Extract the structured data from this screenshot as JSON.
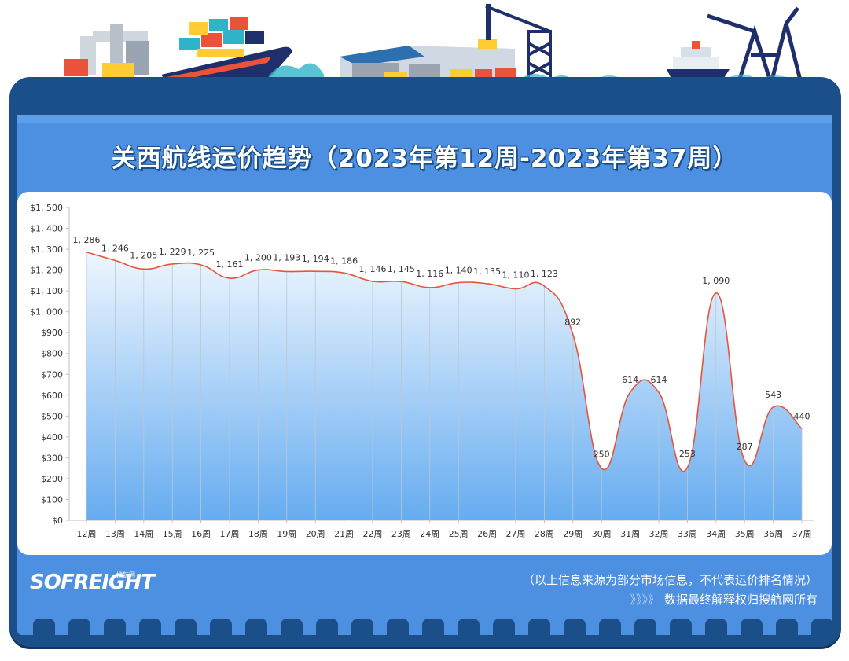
{
  "header": {
    "title": "关西航线运价趋势（2023年第12周-2023年第37周）"
  },
  "footer": {
    "logo": "SOFREIGHT",
    "logo_sub": "搜航网",
    "note1": "（以上信息来源为部分市场信息，不代表运价排名情况）",
    "note2_arrows": "》》》》",
    "note2": "数据最终解释权归搜航网所有"
  },
  "colors": {
    "panel": "#1b4f8a",
    "inner": "#4d8fe0",
    "line": "#e8533a",
    "area_top": "#e9f3fd",
    "area_bottom": "#6fb2f2"
  },
  "chart_data": {
    "type": "area",
    "title": "关西航线运价趋势（2023年第12周-2023年第37周）",
    "categories": [
      "12周",
      "13周",
      "14周",
      "15周",
      "16周",
      "17周",
      "18周",
      "19周",
      "20周",
      "21周",
      "22周",
      "23周",
      "24周",
      "25周",
      "26周",
      "27周",
      "28周",
      "29周",
      "30周",
      "31周",
      "32周",
      "33周",
      "34周",
      "35周",
      "36周",
      "37周"
    ],
    "values": [
      1286,
      1246,
      1205,
      1229,
      1225,
      1161,
      1200,
      1193,
      1194,
      1186,
      1146,
      1145,
      1116,
      1140,
      1135,
      1110,
      1123,
      892,
      250,
      614,
      614,
      253,
      1090,
      287,
      543,
      440
    ],
    "value_labels": [
      "1, 286",
      "1, 246",
      "1, 205",
      "1, 229",
      "1, 225",
      "1, 161",
      "1, 200",
      "1, 193",
      "1, 194",
      "1, 186",
      "1, 146",
      "1, 145",
      "1, 116",
      "1, 140",
      "1, 135",
      "1, 110",
      "1, 123",
      "892",
      "250",
      "614",
      "614",
      "253",
      "1, 090",
      "287",
      "543",
      "440"
    ],
    "yticks": [
      0,
      100,
      200,
      300,
      400,
      500,
      600,
      700,
      800,
      900,
      1000,
      1100,
      1200,
      1300,
      1400,
      1500
    ],
    "ytick_labels": [
      "$0",
      "$100",
      "$200",
      "$300",
      "$400",
      "$500",
      "$600",
      "$700",
      "$800",
      "$900",
      "$1, 000",
      "$1, 100",
      "$1, 200",
      "$1, 300",
      "$1, 400",
      "$1, 500"
    ],
    "ylim": [
      0,
      1500
    ],
    "xlabel": "",
    "ylabel": "",
    "grid": "vertical"
  }
}
